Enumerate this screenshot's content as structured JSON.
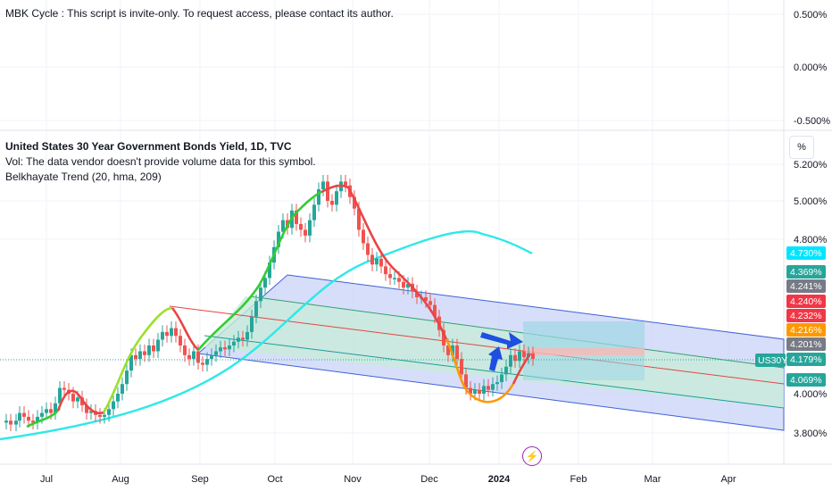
{
  "top_pane": {
    "indicator_text": "MBK Cycle : This script is invite-only. To request access, please contact its author.",
    "scale_labels": [
      "0.500%",
      "0.000%",
      "-0.500%"
    ]
  },
  "main_pane": {
    "title": "United States 30 Year Government Bonds Yield, 1D, TVC",
    "volume_note": "Vol: The data vendor doesn't provide volume data for this symbol.",
    "trend_indicator": "Belkhayate Trend (20, hma, 209)",
    "percent_button": "%",
    "symbol_badge": "US30Y",
    "last_price": "4.179%"
  },
  "colors": {
    "up": "#26a69a",
    "down": "#ef5350",
    "channel_fill": "#c9d3f7",
    "channel_inner_fill": "#c8ebd9",
    "cyan_line": "#2ee8e8",
    "arrow": "#1e4fe0"
  },
  "chart_data": {
    "type": "candlestick",
    "x_axis_labels": [
      "Jul",
      "Aug",
      "Sep",
      "Oct",
      "Nov",
      "Dec",
      "2024",
      "Feb",
      "Mar",
      "Apr"
    ],
    "y_axis_labels": [
      "5.200%",
      "5.000%",
      "4.800%",
      "4.000%",
      "3.800%"
    ],
    "price_labels": [
      {
        "text": "4.730%",
        "color": "#00e5ff"
      },
      {
        "text": "4.369%",
        "color": "#26a69a"
      },
      {
        "text": "4.241%",
        "color": "#787b86"
      },
      {
        "text": "4.240%",
        "color": "#f23645"
      },
      {
        "text": "4.232%",
        "color": "#f23645"
      },
      {
        "text": "4.216%",
        "color": "#ff9800"
      },
      {
        "text": "4.201%",
        "color": "#787b86"
      },
      {
        "text": "4.179%",
        "color": "#26a69a"
      },
      {
        "text": "4.069%",
        "color": "#26a69a"
      }
    ],
    "close_path": [
      [
        0,
        3.85
      ],
      [
        5,
        3.86
      ],
      [
        10,
        3.84
      ],
      [
        16,
        3.86
      ],
      [
        20,
        3.9
      ],
      [
        25,
        3.88
      ],
      [
        30,
        3.86
      ],
      [
        35,
        3.85
      ],
      [
        40,
        3.88
      ],
      [
        45,
        3.9
      ],
      [
        50,
        3.92
      ],
      [
        55,
        3.9
      ],
      [
        60,
        3.95
      ],
      [
        65,
        4.03
      ],
      [
        70,
        4.02
      ],
      [
        75,
        4.0
      ],
      [
        80,
        3.96
      ],
      [
        85,
        3.98
      ],
      [
        90,
        3.94
      ],
      [
        95,
        3.9
      ],
      [
        100,
        3.91
      ],
      [
        105,
        3.89
      ],
      [
        110,
        3.88
      ],
      [
        115,
        3.89
      ],
      [
        120,
        3.92
      ],
      [
        125,
        3.96
      ],
      [
        130,
        4.0
      ],
      [
        135,
        4.05
      ],
      [
        140,
        4.12
      ],
      [
        145,
        4.2
      ],
      [
        150,
        4.18
      ],
      [
        155,
        4.22
      ],
      [
        160,
        4.2
      ],
      [
        165,
        4.25
      ],
      [
        170,
        4.22
      ],
      [
        175,
        4.28
      ],
      [
        180,
        4.32
      ],
      [
        185,
        4.3
      ],
      [
        190,
        4.34
      ],
      [
        195,
        4.3
      ],
      [
        200,
        4.25
      ],
      [
        205,
        4.2
      ],
      [
        210,
        4.18
      ],
      [
        215,
        4.22
      ],
      [
        220,
        4.16
      ],
      [
        225,
        4.15
      ],
      [
        230,
        4.18
      ],
      [
        235,
        4.2
      ],
      [
        240,
        4.22
      ],
      [
        245,
        4.24
      ],
      [
        250,
        4.23
      ],
      [
        255,
        4.25
      ],
      [
        260,
        4.27
      ],
      [
        265,
        4.29
      ],
      [
        270,
        4.28
      ],
      [
        275,
        4.32
      ],
      [
        280,
        4.4
      ],
      [
        285,
        4.48
      ],
      [
        290,
        4.55
      ],
      [
        295,
        4.6
      ],
      [
        300,
        4.68
      ],
      [
        305,
        4.76
      ],
      [
        310,
        4.84
      ],
      [
        315,
        4.9
      ],
      [
        320,
        4.86
      ],
      [
        325,
        4.95
      ],
      [
        330,
        4.88
      ],
      [
        335,
        4.85
      ],
      [
        340,
        4.82
      ],
      [
        345,
        4.9
      ],
      [
        350,
        4.98
      ],
      [
        355,
        5.06
      ],
      [
        360,
        5.1
      ],
      [
        365,
        5.0
      ],
      [
        370,
        4.98
      ],
      [
        375,
        5.05
      ],
      [
        380,
        5.1
      ],
      [
        385,
        5.08
      ],
      [
        390,
        5.02
      ],
      [
        395,
        4.96
      ],
      [
        400,
        4.85
      ],
      [
        405,
        4.78
      ],
      [
        410,
        4.72
      ],
      [
        415,
        4.67
      ],
      [
        420,
        4.7
      ],
      [
        425,
        4.66
      ],
      [
        430,
        4.62
      ],
      [
        435,
        4.6
      ],
      [
        440,
        4.6
      ],
      [
        445,
        4.58
      ],
      [
        450,
        4.55
      ],
      [
        455,
        4.57
      ],
      [
        460,
        4.53
      ],
      [
        465,
        4.5
      ],
      [
        470,
        4.5
      ],
      [
        475,
        4.48
      ],
      [
        480,
        4.46
      ],
      [
        485,
        4.4
      ],
      [
        490,
        4.33
      ],
      [
        495,
        4.25
      ],
      [
        500,
        4.2
      ],
      [
        505,
        4.25
      ],
      [
        510,
        4.18
      ],
      [
        515,
        4.1
      ],
      [
        520,
        4.03
      ],
      [
        525,
        4.0
      ],
      [
        530,
        4.02
      ],
      [
        535,
        4.0
      ],
      [
        540,
        4.04
      ],
      [
        545,
        4.02
      ],
      [
        550,
        4.05
      ],
      [
        555,
        4.06
      ],
      [
        560,
        4.1
      ],
      [
        565,
        4.14
      ],
      [
        570,
        4.2
      ],
      [
        575,
        4.17
      ],
      [
        580,
        4.22
      ],
      [
        585,
        4.19
      ],
      [
        590,
        4.21
      ],
      [
        595,
        4.18
      ]
    ],
    "regression_channel": {
      "start_value": 4.395,
      "end_value_outer_top": 4.36,
      "note": "downward sloping Belkhayate channel from mid-Aug to Apr"
    },
    "cyan_ma": {
      "from": 3.8,
      "peak": 4.82,
      "end": 4.73
    }
  }
}
